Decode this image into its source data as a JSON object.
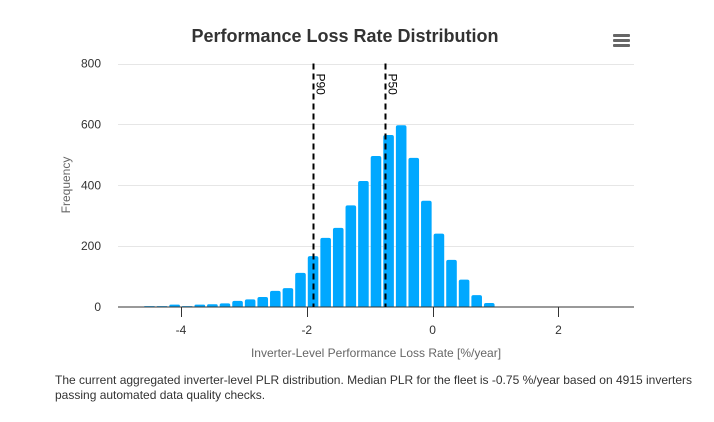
{
  "menu": {
    "icon": "hamburger-menu-icon"
  },
  "caption": "The current aggregated inverter-level PLR distribution. Median PLR for the fleet is -0.75 %/year based on 4915 inverters passing automated data quality checks.",
  "colors": {
    "bar": "#00a8ff",
    "plot_line": "#000000",
    "grid": "#e6e6e6",
    "title": "#333333"
  },
  "chart_data": {
    "type": "bar",
    "title": "Performance Loss Rate Distribution",
    "xlabel": "Inverter-Level Performance Loss Rate [%/year]",
    "ylabel": "Frequency",
    "xlim": [
      -5,
      3.2
    ],
    "ylim": [
      0,
      800
    ],
    "xticks": [
      -4,
      -2,
      0,
      2
    ],
    "xtick_labels": [
      "-4",
      "-2",
      "0",
      "2"
    ],
    "yticks": [
      0,
      200,
      400,
      600,
      800
    ],
    "ytick_labels": [
      "0",
      "200",
      "400",
      "600",
      "800"
    ],
    "grid": true,
    "legend": "none",
    "bin_width": 0.2,
    "bin_centers": [
      -4.5,
      -4.3,
      -4.1,
      -3.9,
      -3.7,
      -3.5,
      -3.3,
      -3.1,
      -2.9,
      -2.7,
      -2.5,
      -2.3,
      -2.1,
      -1.9,
      -1.7,
      -1.5,
      -1.3,
      -1.1,
      -0.9,
      -0.7,
      -0.5,
      -0.3,
      -0.1,
      0.1,
      0.3,
      0.5,
      0.7,
      0.9
    ],
    "values": [
      3,
      3,
      8,
      3,
      8,
      9,
      12,
      20,
      25,
      33,
      53,
      62,
      112,
      167,
      227,
      260,
      334,
      414,
      496,
      565,
      597,
      490,
      349,
      241,
      155,
      90,
      39,
      13
    ],
    "plot_lines": [
      {
        "label": "P90",
        "x": -1.9
      },
      {
        "label": "P50",
        "x": -0.75
      }
    ]
  }
}
